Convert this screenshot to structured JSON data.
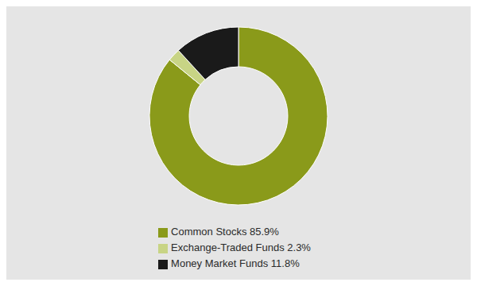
{
  "chart_data": {
    "type": "pie",
    "categories": [
      "Common Stocks 85.9%",
      "Exchange-Traded Funds 2.3%",
      "Money Market Funds 11.8%"
    ],
    "values": [
      85.9,
      2.3,
      11.8
    ],
    "colors": [
      "#8a9a1a",
      "#c8d485",
      "#1a1a1a"
    ],
    "legend": "bottom"
  }
}
